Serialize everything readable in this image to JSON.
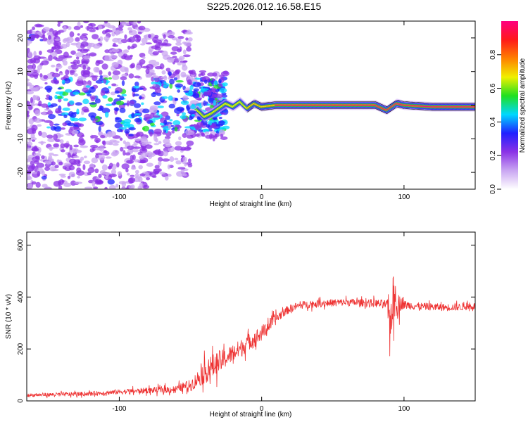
{
  "title": "S225.2026.012.16.58.E15",
  "colors": {
    "snr_line": "#ee3333",
    "ridge": "#e81c1c",
    "axis": "#000000"
  },
  "chart_data": [
    {
      "type": "heatmap",
      "xlabel": "Height of straight line (km)",
      "ylabel": "Frequency (Hz)",
      "xlim": [
        -165,
        150
      ],
      "ylim": [
        -25,
        25
      ],
      "xticks": [
        -100,
        0,
        100
      ],
      "yticks": [
        -20,
        -10,
        0,
        10,
        20
      ],
      "colorbar": {
        "label": "Normalized spectral amplitude",
        "range": [
          0,
          1
        ],
        "ticks": [
          0.0,
          0.2,
          0.4,
          0.6,
          0.8
        ],
        "colormap": [
          "#ffffff",
          "#c9a6f2",
          "#8b32e6",
          "#2020ff",
          "#00d8ff",
          "#20e020",
          "#f0f000",
          "#ff8000",
          "#ff1a1a",
          "#ff0080"
        ]
      },
      "ridge": {
        "x": [
          -45,
          -40,
          -35,
          -30,
          -25,
          -20,
          -15,
          -10,
          -5,
          0,
          10,
          20,
          40,
          60,
          80,
          88,
          95,
          100,
          120,
          150
        ],
        "y": [
          -1.5,
          -3.5,
          -2.5,
          -1.0,
          0.5,
          -0.5,
          1.0,
          -1.0,
          0.5,
          -0.5,
          0.0,
          0.0,
          0.0,
          0.0,
          0.0,
          -1.5,
          0.5,
          0.0,
          -0.5,
          -0.5
        ]
      },
      "grid": false,
      "legend": "colorbar-right"
    },
    {
      "type": "line",
      "xlabel": "Height of straight line (km)",
      "ylabel": "SNR (10 * v/v)",
      "xlim": [
        -165,
        150
      ],
      "ylim": [
        0,
        650
      ],
      "xticks": [
        -100,
        0,
        100
      ],
      "yticks": [
        0,
        200,
        400,
        600
      ],
      "series": [
        {
          "x": [
            -165,
            -140,
            -120,
            -100,
            -80,
            -60,
            -55,
            -50,
            -45,
            -40,
            -35,
            -30,
            -25,
            -20,
            -15,
            -10,
            -5,
            0,
            5,
            10,
            15,
            20,
            25,
            30,
            40,
            50,
            60,
            70,
            80,
            88,
            90,
            92,
            94,
            96,
            98,
            100,
            110,
            120,
            130,
            140,
            150
          ],
          "values": [
            22,
            25,
            28,
            35,
            40,
            45,
            55,
            60,
            85,
            110,
            130,
            150,
            165,
            185,
            200,
            225,
            240,
            260,
            290,
            315,
            340,
            355,
            365,
            370,
            375,
            378,
            380,
            378,
            376,
            370,
            300,
            380,
            400,
            360,
            380,
            370,
            365,
            362,
            360,
            362,
            365
          ],
          "noise": [
            8,
            10,
            10,
            12,
            14,
            18,
            22,
            28,
            40,
            55,
            60,
            55,
            45,
            45,
            45,
            40,
            40,
            38,
            32,
            28,
            22,
            20,
            18,
            18,
            18,
            18,
            18,
            18,
            20,
            22,
            90,
            130,
            100,
            60,
            35,
            22,
            18,
            18,
            18,
            18,
            18
          ]
        }
      ],
      "grid": false,
      "legend": "none"
    }
  ]
}
